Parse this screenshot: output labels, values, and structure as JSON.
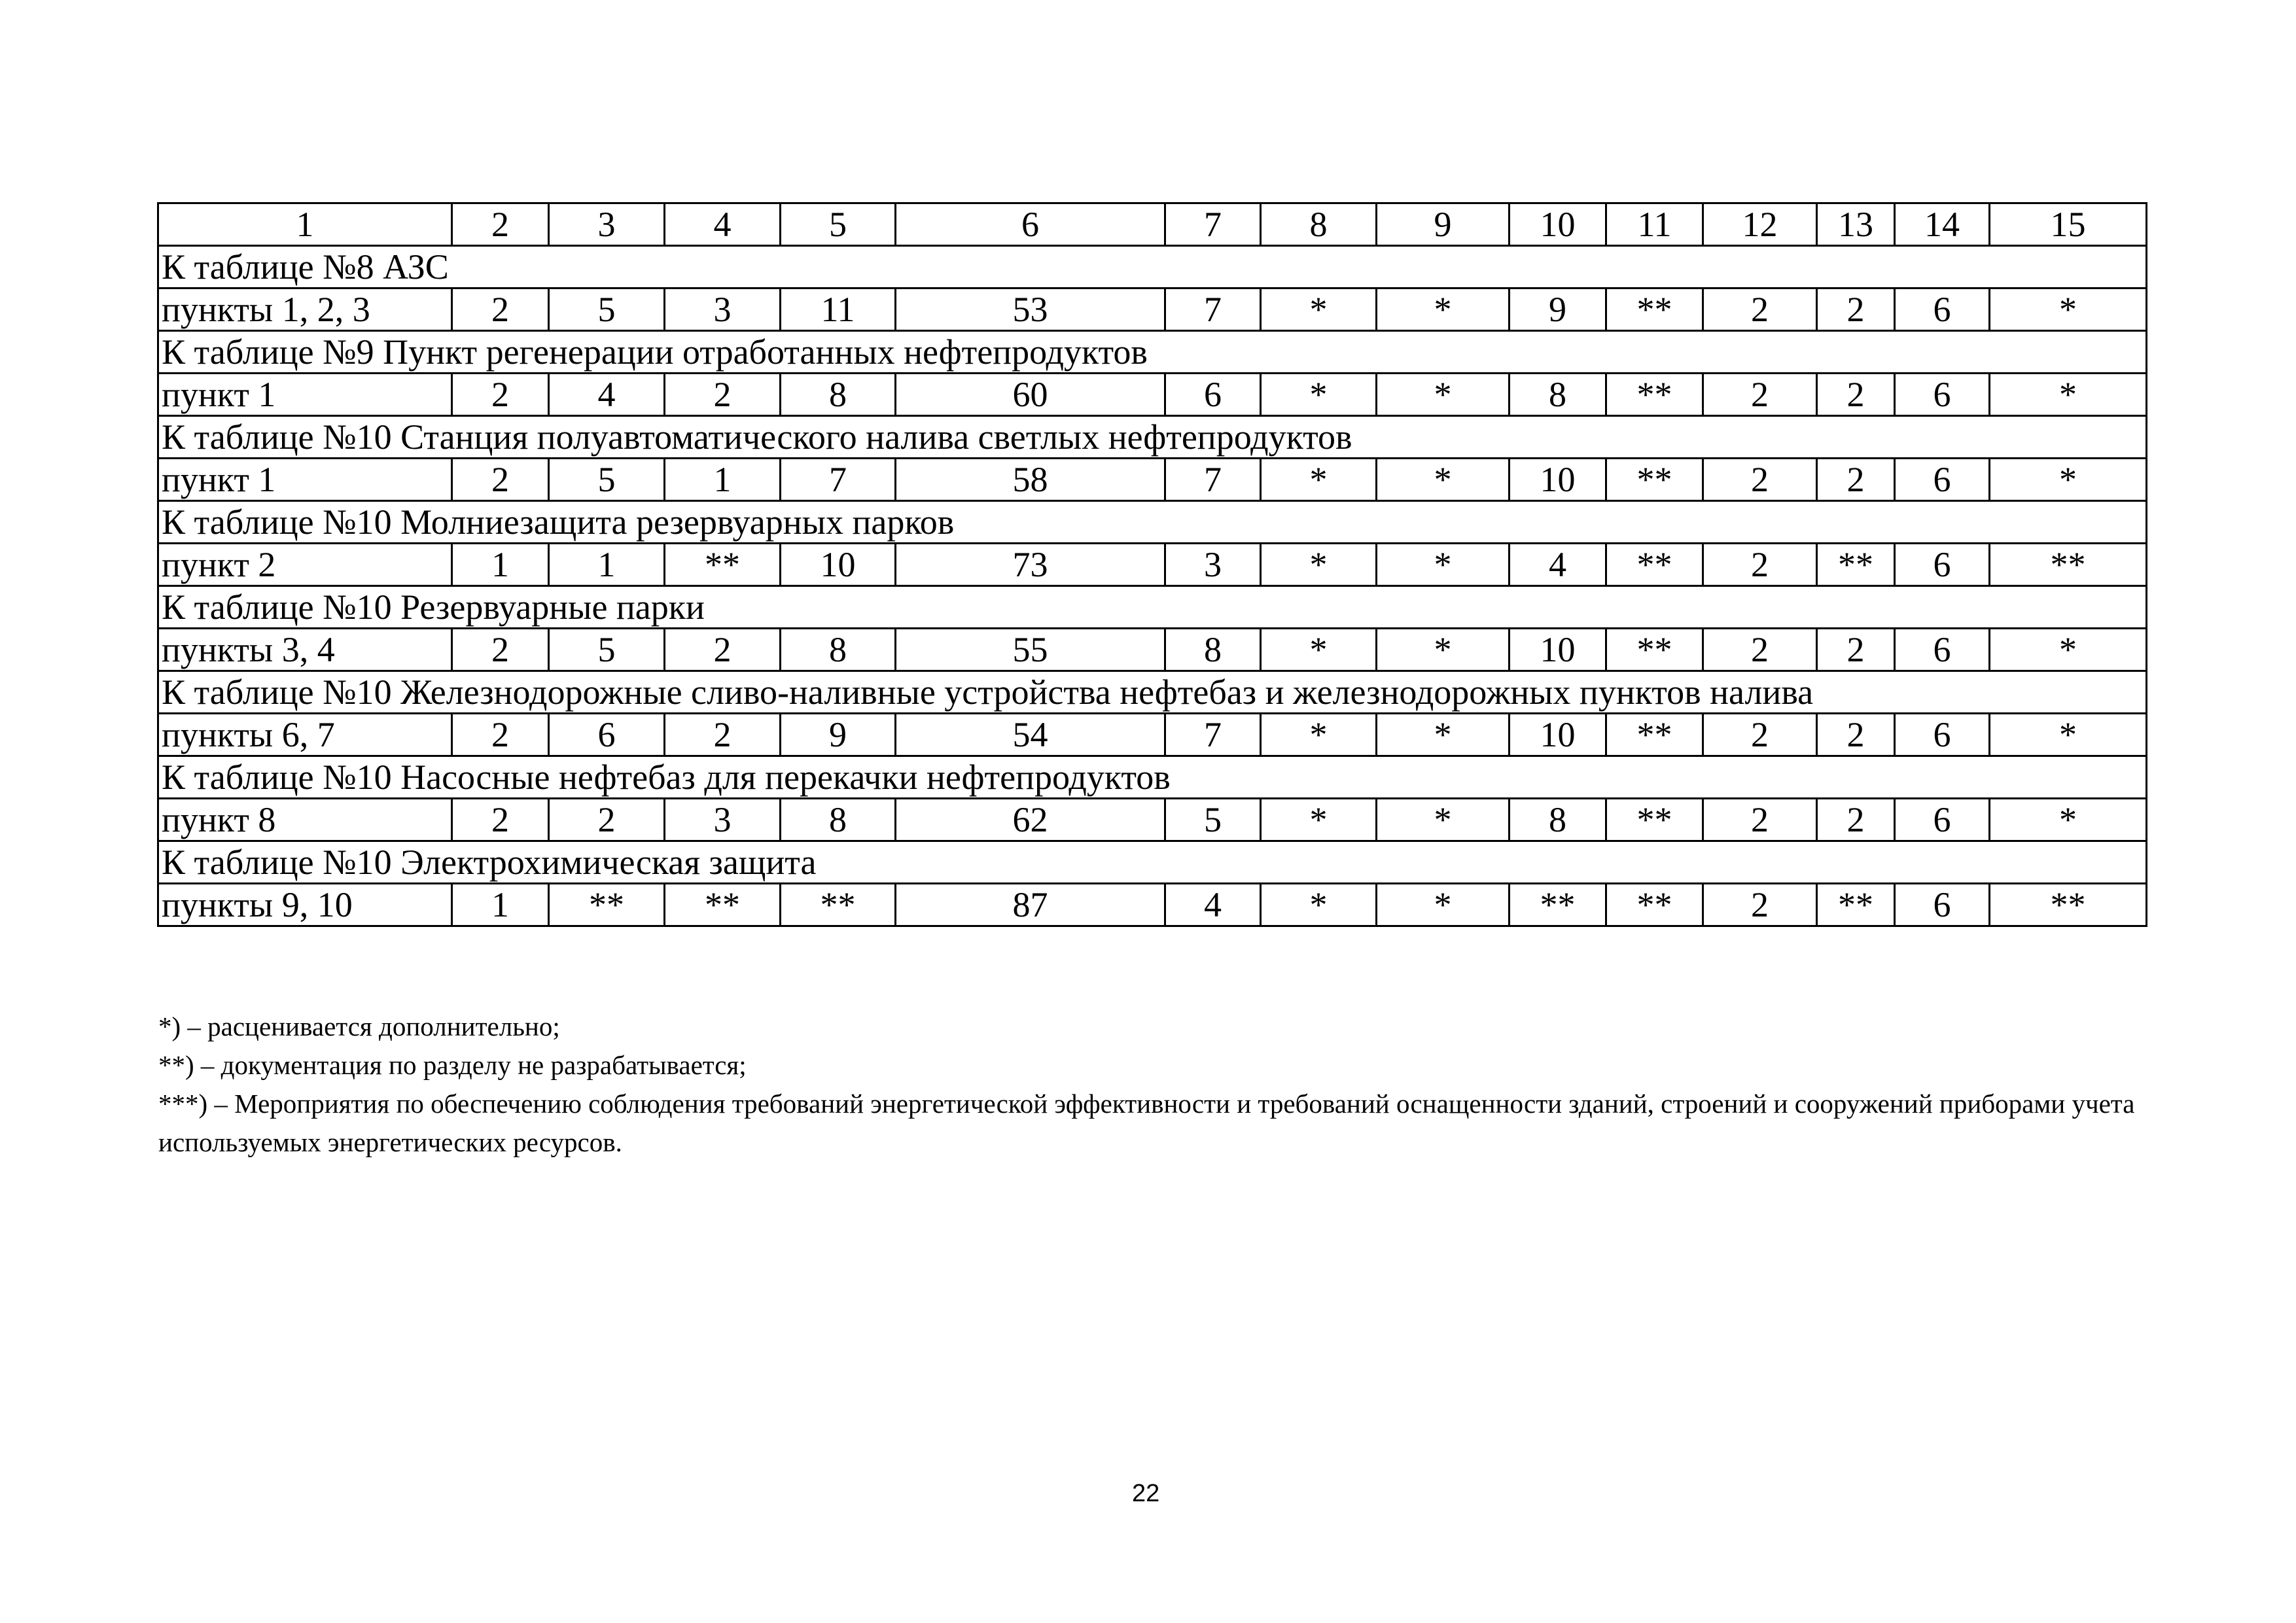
{
  "table": {
    "header": [
      "1",
      "2",
      "3",
      "4",
      "5",
      "6",
      "7",
      "8",
      "9",
      "10",
      "11",
      "12",
      "13",
      "14",
      "15"
    ],
    "groups": [
      {
        "section": "К таблице №8 АЗС",
        "row": [
          "пункты 1, 2, 3",
          "2",
          "5",
          "3",
          "11",
          "53",
          "7",
          "*",
          "*",
          "9",
          "**",
          "2",
          "2",
          "6",
          "*"
        ]
      },
      {
        "section": "К таблице №9 Пункт регенерации отработанных нефтепродуктов",
        "row": [
          "пункт 1",
          "2",
          "4",
          "2",
          "8",
          "60",
          "6",
          "*",
          "*",
          "8",
          "**",
          "2",
          "2",
          "6",
          "*"
        ]
      },
      {
        "section": "К таблице №10 Станция полуавтоматического налива светлых нефтепродуктов",
        "row": [
          "пункт 1",
          "2",
          "5",
          "1",
          "7",
          "58",
          "7",
          "*",
          "*",
          "10",
          "**",
          "2",
          "2",
          "6",
          "*"
        ]
      },
      {
        "section": "К таблице №10 Молниезащита резервуарных парков",
        "row": [
          "пункт 2",
          "1",
          "1",
          "**",
          "10",
          "73",
          "3",
          "*",
          "*",
          "4",
          "**",
          "2",
          "**",
          "6",
          "**"
        ]
      },
      {
        "section": "К таблице №10 Резервуарные парки",
        "row": [
          "пункты 3, 4",
          "2",
          "5",
          "2",
          "8",
          "55",
          "8",
          "*",
          "*",
          "10",
          "**",
          "2",
          "2",
          "6",
          "*"
        ]
      },
      {
        "section": "К таблице №10 Железнодорожные сливо-наливные устройства нефтебаз и железнодорожных пунктов налива",
        "row": [
          "пункты 6, 7",
          "2",
          "6",
          "2",
          "9",
          "54",
          "7",
          "*",
          "*",
          "10",
          "**",
          "2",
          "2",
          "6",
          "*"
        ]
      },
      {
        "section": "К таблице №10 Насосные нефтебаз для перекачки нефтепродуктов",
        "row": [
          "пункт 8",
          "2",
          "2",
          "3",
          "8",
          "62",
          "5",
          "*",
          "*",
          "8",
          "**",
          "2",
          "2",
          "6",
          "*"
        ]
      },
      {
        "section": "К таблице №10 Электрохимическая защита",
        "row": [
          "пункты 9, 10",
          "1",
          "**",
          "**",
          "**",
          "87",
          "4",
          "*",
          "*",
          "**",
          "**",
          "2",
          "**",
          "6",
          "**"
        ]
      }
    ]
  },
  "notes": [
    "*) – расценивается дополнительно;",
    "**) – документация по разделу не разрабатывается;",
    "***) – Мероприятия по обеспечению соблюдения требований энергетической эффективности и требований оснащенности зданий, строений и сооружений приборами учета используемых энергетических ресурсов."
  ],
  "page_number": "22"
}
